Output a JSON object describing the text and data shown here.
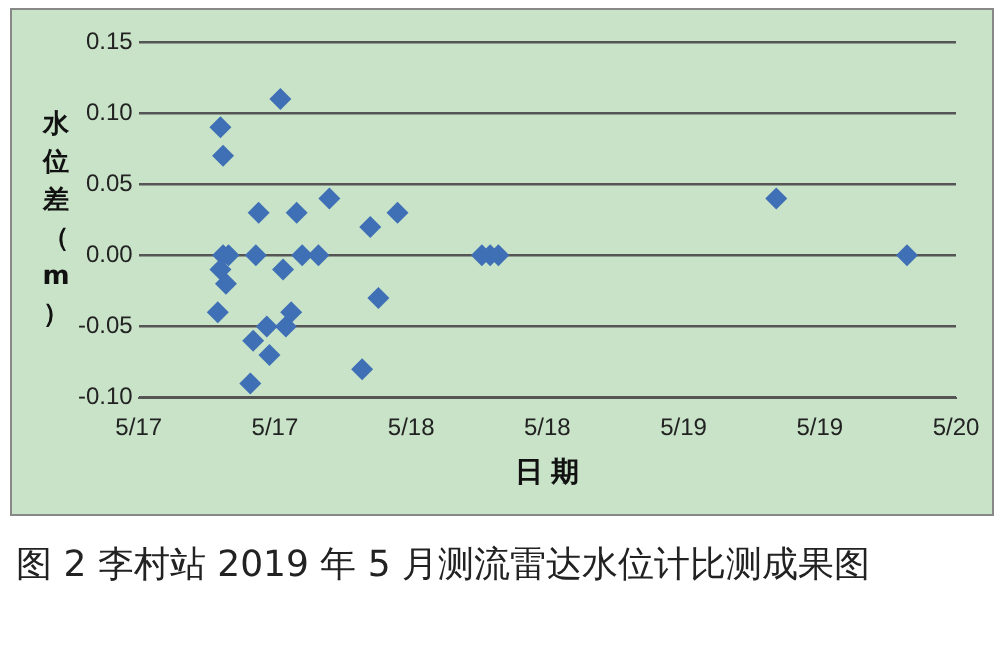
{
  "chart_data": {
    "type": "scatter",
    "xlabel": "日 期",
    "ylabel": "水位差（m）",
    "annotations": [
      "图 2 李村站 2019 年 5 月测流雷达水位计比测成果图"
    ],
    "x": [
      "2019-05-17T07:12",
      "2019-05-17T07:26",
      "2019-05-17T06:58",
      "2019-05-17T07:12",
      "2019-05-17T07:26",
      "2019-05-17T07:55",
      "2019-05-17T07:41",
      "2019-05-17T09:50",
      "2019-05-17T10:05",
      "2019-05-17T10:34",
      "2019-05-17T10:19",
      "2019-05-17T11:17",
      "2019-05-17T11:31",
      "2019-05-17T12:29",
      "2019-05-17T12:43",
      "2019-05-17T12:58",
      "2019-05-17T13:26",
      "2019-05-17T13:55",
      "2019-05-17T14:24",
      "2019-05-17T15:50",
      "2019-05-17T16:48",
      "2019-05-17T19:41",
      "2019-05-17T20:24",
      "2019-05-17T21:07",
      "2019-05-17T22:48",
      "2019-05-18T06:14",
      "2019-05-18T06:58",
      "2019-05-18T07:41",
      "2019-05-19T08:10",
      "2019-05-19T19:41"
    ],
    "series": [
      {
        "color": "#3f6fb5",
        "values": [
          0.09,
          0.07,
          -0.04,
          -0.01,
          0,
          0,
          -0.02,
          -0.09,
          -0.06,
          0.03,
          0,
          -0.05,
          -0.07,
          0.11,
          -0.01,
          -0.05,
          -0.04,
          0.03,
          0,
          0,
          0.04,
          -0.08,
          0.02,
          -0.03,
          0.03,
          0,
          0,
          0,
          0.04,
          0
        ]
      }
    ],
    "xlim": [
      "2019-05-17T00:00",
      "2019-05-20T00:00"
    ],
    "xticks": [
      {
        "value": "2019-05-17T00:00",
        "label": "5/17"
      },
      {
        "value": "2019-05-17T12:00",
        "label": "5/17"
      },
      {
        "value": "2019-05-18T00:00",
        "label": "5/18"
      },
      {
        "value": "2019-05-18T12:00",
        "label": "5/18"
      },
      {
        "value": "2019-05-19T00:00",
        "label": "5/19"
      },
      {
        "value": "2019-05-19T12:00",
        "label": "5/19"
      },
      {
        "value": "2019-05-20T00:00",
        "label": "5/20"
      }
    ],
    "ylim": [
      -0.1,
      0.15
    ],
    "yticks": [
      {
        "value": -0.1,
        "label": "-0.10"
      },
      {
        "value": -0.05,
        "label": "-0.05"
      },
      {
        "value": 0,
        "label": "0.00"
      },
      {
        "value": 0.05,
        "label": "0.05"
      },
      {
        "value": 0.1,
        "label": "0.10"
      },
      {
        "value": 0.15,
        "label": "0.15"
      }
    ],
    "grid": "y",
    "legend": false,
    "marker": "diamond"
  }
}
